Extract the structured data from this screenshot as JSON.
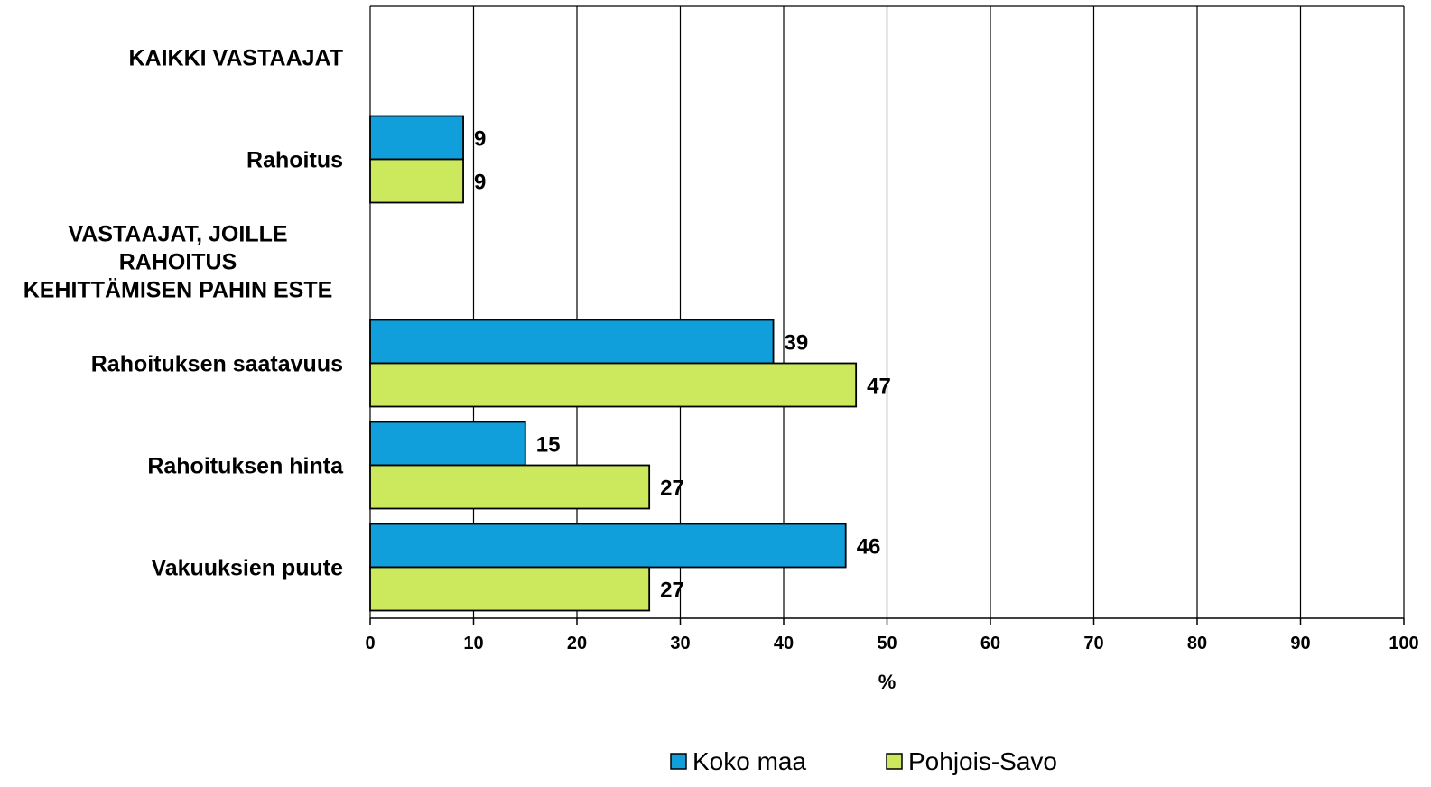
{
  "chart_data": {
    "type": "bar",
    "orientation": "horizontal",
    "categories": [
      "KAIKKI VASTAAJAT",
      "Rahoitus",
      "VASTAAJAT, JOILLE RAHOITUS KEHITTÄMISEN PAHIN ESTE",
      "Rahoituksen saatavuus",
      "Rahoituksen hinta",
      "Vakuuksien puute"
    ],
    "category_lines": [
      [
        "KAIKKI VASTAAJAT"
      ],
      [
        "Rahoitus"
      ],
      [
        "VASTAAJAT, JOILLE",
        "RAHOITUS",
        "KEHITTÄMISEN PAHIN ESTE"
      ],
      [
        "Rahoituksen saatavuus"
      ],
      [
        "Rahoituksen hinta"
      ],
      [
        "Vakuuksien puute"
      ]
    ],
    "series": [
      {
        "name": "Koko maa",
        "color": "#109fdb",
        "values": [
          null,
          9,
          null,
          39,
          15,
          46
        ]
      },
      {
        "name": "Pohjois-Savo",
        "color": "#cce85c",
        "values": [
          null,
          9,
          null,
          47,
          27,
          27
        ]
      }
    ],
    "xlabel": "%",
    "xlim": [
      0,
      100
    ],
    "xticks": [
      0,
      10,
      20,
      30,
      40,
      50,
      60,
      70,
      80,
      90,
      100
    ],
    "grid": "vertical",
    "legend_position": "bottom"
  }
}
